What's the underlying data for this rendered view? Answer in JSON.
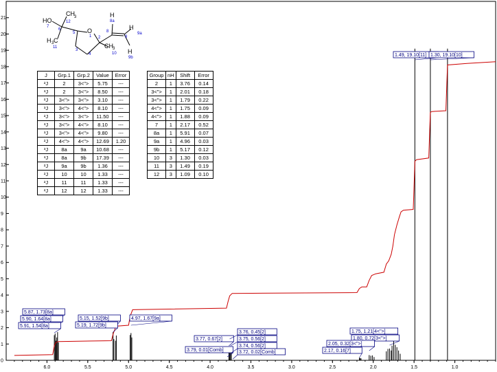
{
  "chart_data": {
    "type": "line",
    "xlim": [
      6.5,
      0.5
    ],
    "ylim": [
      0,
      22
    ],
    "x_ticks": [
      6.0,
      5.5,
      5.0,
      4.5,
      4.0,
      3.5,
      3.0,
      2.5,
      2.0,
      1.5,
      1.0
    ],
    "y_ticks": [
      0,
      1,
      2,
      3,
      4,
      5,
      6,
      7,
      8,
      9,
      10,
      11,
      12,
      13,
      14,
      15,
      16,
      17,
      18,
      19,
      20,
      21
    ],
    "colors": {
      "integral": "#cc0000",
      "peaks": "#000000",
      "label_border": "#00007f",
      "label_text": "#00007f",
      "atom_numbers": "#0000cc"
    },
    "peaks": [
      {
        "shift": 5.91,
        "height": 1.54
      },
      {
        "shift": 5.9,
        "height": 1.64
      },
      {
        "shift": 5.89,
        "height": 1.2
      },
      {
        "shift": 5.88,
        "height": 1.4
      },
      {
        "shift": 5.87,
        "height": 1.73
      },
      {
        "shift": 5.86,
        "height": 1.1
      },
      {
        "shift": 5.19,
        "height": 1.72
      },
      {
        "shift": 5.18,
        "height": 1.3
      },
      {
        "shift": 5.16,
        "height": 1.2
      },
      {
        "shift": 5.15,
        "height": 1.52
      },
      {
        "shift": 4.98,
        "height": 1.55
      },
      {
        "shift": 4.97,
        "height": 1.67
      },
      {
        "shift": 4.96,
        "height": 1.4
      },
      {
        "shift": 3.79,
        "height": 0.01
      },
      {
        "shift": 3.77,
        "height": 0.67
      },
      {
        "shift": 3.76,
        "height": 0.45
      },
      {
        "shift": 3.75,
        "height": 0.56
      },
      {
        "shift": 3.74,
        "height": 0.56
      },
      {
        "shift": 3.72,
        "height": 0.02
      },
      {
        "shift": 2.17,
        "height": 0.16
      },
      {
        "shift": 2.16,
        "height": 0.14
      },
      {
        "shift": 2.15,
        "height": 0.12
      },
      {
        "shift": 2.05,
        "height": 0.32
      },
      {
        "shift": 2.03,
        "height": 0.28
      },
      {
        "shift": 2.01,
        "height": 0.3
      },
      {
        "shift": 1.99,
        "height": 0.2
      },
      {
        "shift": 1.84,
        "height": 0.55
      },
      {
        "shift": 1.82,
        "height": 0.7
      },
      {
        "shift": 1.8,
        "height": 0.72
      },
      {
        "shift": 1.78,
        "height": 0.6
      },
      {
        "shift": 1.77,
        "height": 0.9
      },
      {
        "shift": 1.75,
        "height": 1.21
      },
      {
        "shift": 1.73,
        "height": 0.95
      },
      {
        "shift": 1.71,
        "height": 0.8
      },
      {
        "shift": 1.69,
        "height": 0.6
      },
      {
        "shift": 1.67,
        "height": 0.4
      },
      {
        "shift": 1.49,
        "height": 19.1
      },
      {
        "shift": 1.3,
        "height": 19.1
      },
      {
        "shift": 1.09,
        "height": 19.1
      }
    ],
    "integral": [
      [
        6.4,
        0.3
      ],
      [
        5.93,
        0.35
      ],
      [
        5.92,
        0.6
      ],
      [
        5.91,
        0.9
      ],
      [
        5.89,
        1.1
      ],
      [
        5.86,
        1.15
      ],
      [
        5.21,
        1.2
      ],
      [
        5.19,
        1.6
      ],
      [
        5.16,
        2.0
      ],
      [
        5.14,
        2.1
      ],
      [
        5.0,
        2.15
      ],
      [
        4.98,
        2.7
      ],
      [
        4.95,
        3.1
      ],
      [
        3.8,
        3.2
      ],
      [
        3.78,
        3.6
      ],
      [
        3.76,
        3.95
      ],
      [
        3.73,
        4.1
      ],
      [
        2.2,
        4.15
      ],
      [
        2.17,
        4.4
      ],
      [
        2.14,
        4.5
      ],
      [
        2.08,
        4.5
      ],
      [
        2.05,
        4.9
      ],
      [
        2.02,
        5.2
      ],
      [
        1.97,
        5.3
      ],
      [
        1.87,
        5.4
      ],
      [
        1.84,
        5.9
      ],
      [
        1.81,
        6.1
      ],
      [
        1.78,
        6.5
      ],
      [
        1.76,
        7.0
      ],
      [
        1.74,
        7.7
      ],
      [
        1.71,
        8.3
      ],
      [
        1.68,
        8.8
      ],
      [
        1.66,
        9.1
      ],
      [
        1.63,
        9.2
      ],
      [
        1.51,
        9.25
      ],
      [
        1.49,
        12.2
      ],
      [
        1.47,
        12.3
      ],
      [
        1.32,
        12.4
      ],
      [
        1.3,
        15.2
      ],
      [
        1.28,
        15.25
      ],
      [
        1.11,
        15.3
      ],
      [
        1.09,
        18.1
      ],
      [
        0.85,
        18.2
      ],
      [
        0.5,
        18.3
      ]
    ],
    "peak_labels": [
      {
        "text": "5.87, 1.73[8a]",
        "shift": 5.87
      },
      {
        "text": "5.90, 1.64[8a]",
        "shift": 5.9
      },
      {
        "text": "5.91, 1.54[8a]",
        "shift": 5.91
      },
      {
        "text": "5.15, 1.52[9b]",
        "shift": 5.15
      },
      {
        "text": "5.19, 1.72[9b]",
        "shift": 5.19
      },
      {
        "text": "4.97, 1.67[9a]",
        "shift": 4.97
      },
      {
        "text": "3.77, 0.67[2]",
        "shift": 3.77
      },
      {
        "text": "3.79, 0.01[Comb]",
        "shift": 3.79
      },
      {
        "text": "3.76, 0.45[2]",
        "shift": 3.76
      },
      {
        "text": "3.75, 0.56[2]",
        "shift": 3.75
      },
      {
        "text": "3.74, 0.56[2]",
        "shift": 3.74
      },
      {
        "text": "3.72, 0.02[Comb]",
        "shift": 3.72
      },
      {
        "text": "1.75, 1.21[4<\">]",
        "shift": 1.75
      },
      {
        "text": "1.80, 0.72[3<\">]",
        "shift": 1.8
      },
      {
        "text": "2.05, 0.32[3<\">]",
        "shift": 2.05
      },
      {
        "text": "2.17, 0.16[7]",
        "shift": 2.17
      },
      {
        "text": "1.49, 19.10[11]",
        "shift": 1.49
      },
      {
        "text": "1.30, 19.10[10]",
        "shift": 1.3
      }
    ]
  },
  "j_table": {
    "headers": [
      "J",
      "Grp.1",
      "Grp.2",
      "Value",
      "Error"
    ],
    "rows": [
      [
        "²J",
        "2",
        "3<\">",
        "5.75",
        "---"
      ],
      [
        "³J",
        "2",
        "3<\">",
        "8.50",
        "---"
      ],
      [
        "²J",
        "3<\">",
        "3<\">",
        "3.10",
        "---"
      ],
      [
        "³J",
        "3<\">",
        "4<\">",
        "8.10",
        "---"
      ],
      [
        "²J",
        "3<\">",
        "3<\">",
        "11.50",
        "---"
      ],
      [
        "³J",
        "3<\">",
        "4<\">",
        "8.10",
        "---"
      ],
      [
        "³J",
        "3<\">",
        "4<\">",
        "9.80",
        "---"
      ],
      [
        "²J",
        "4<\">",
        "4<\">",
        "12.69",
        "1.20"
      ],
      [
        "³J",
        "8a",
        "9a",
        "10.68",
        "---"
      ],
      [
        "³J",
        "8a",
        "9b",
        "17.39",
        "---"
      ],
      [
        "²J",
        "9a",
        "9b",
        "1.36",
        "---"
      ],
      [
        "²J",
        "10",
        "10",
        "1.33",
        "---"
      ],
      [
        "²J",
        "11",
        "11",
        "1.33",
        "---"
      ],
      [
        "²J",
        "12",
        "12",
        "1.33",
        "---"
      ]
    ]
  },
  "shift_table": {
    "headers": [
      "Group",
      "nH",
      "Shift",
      "Error"
    ],
    "rows": [
      [
        "2",
        "1",
        "3.76",
        "0.14"
      ],
      [
        "3<\">",
        "1",
        "2.01",
        "0.18"
      ],
      [
        "3<\">",
        "1",
        "1.79",
        "0.22"
      ],
      [
        "4<\">",
        "1",
        "1.75",
        "0.09"
      ],
      [
        "4<\">",
        "1",
        "1.88",
        "0.09"
      ],
      [
        "7",
        "1",
        "2.17",
        "0.52"
      ],
      [
        "8a",
        "1",
        "5.91",
        "0.07"
      ],
      [
        "9a",
        "1",
        "4.96",
        "0.03"
      ],
      [
        "9b",
        "1",
        "5.17",
        "0.12"
      ],
      [
        "10",
        "3",
        "1.30",
        "0.03"
      ],
      [
        "11",
        "3",
        "1.49",
        "0.19"
      ],
      [
        "12",
        "3",
        "1.09",
        "0.10"
      ]
    ]
  },
  "structure": {
    "atom_labels": [
      "HO",
      "CH",
      "3",
      "H",
      "C",
      "3",
      "O",
      "CH",
      "3",
      "H",
      "H",
      "H"
    ],
    "atom_numbers": [
      "7",
      "12",
      "6",
      "11",
      "5",
      "1",
      "2",
      "3",
      "4",
      "10",
      "8",
      "8a",
      "9",
      "9a",
      "9b"
    ]
  }
}
